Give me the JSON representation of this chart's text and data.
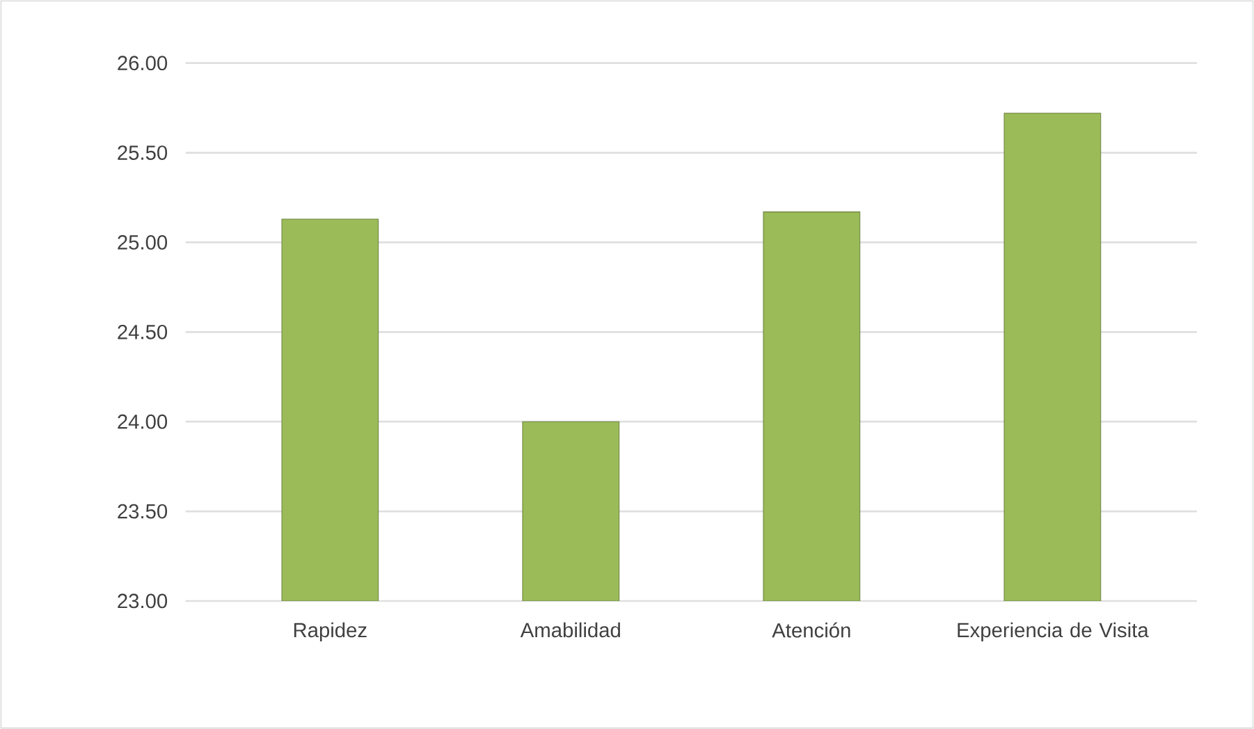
{
  "chart_data": {
    "type": "bar",
    "categories": [
      "Rapidez",
      "Amabilidad",
      "Atención",
      "Experiencia de Visita"
    ],
    "values": [
      25.13,
      24.0,
      25.17,
      25.72
    ],
    "color": "#9bbb59",
    "ylim": [
      23,
      26
    ],
    "yticks": [
      {
        "value": 23,
        "label": "23.00"
      },
      {
        "value": 23.5,
        "label": "23.50"
      },
      {
        "value": 24,
        "label": "24.00"
      },
      {
        "value": 24.5,
        "label": "24.50"
      },
      {
        "value": 25,
        "label": "25.00"
      },
      {
        "value": 25.5,
        "label": "25.50"
      },
      {
        "value": 26,
        "label": "26.00"
      }
    ],
    "grid": "y"
  }
}
